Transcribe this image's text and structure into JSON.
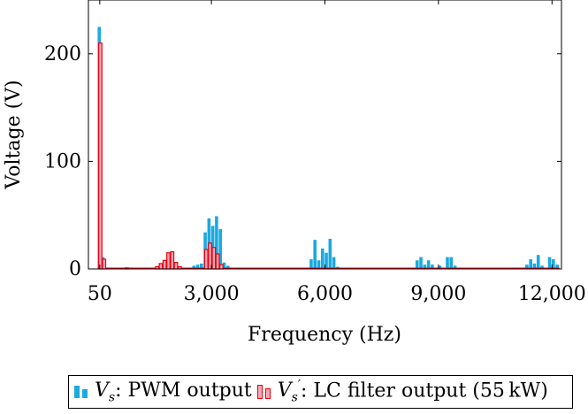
{
  "chart_data": {
    "type": "bar",
    "xlabel": "Frequency (Hz)",
    "ylabel": "Voltage (V)",
    "xlim": [
      -250,
      12250
    ],
    "ylim": [
      0,
      250
    ],
    "x_ticks": [
      50,
      3000,
      6000,
      9000,
      12000
    ],
    "x_tick_labels": [
      "50",
      "3,000",
      "6,000",
      "9,000",
      "12,000"
    ],
    "y_ticks": [
      0,
      100,
      200
    ],
    "y_tick_labels": [
      "0",
      "100",
      "200"
    ],
    "grid": false,
    "legend_position": "below",
    "series": [
      {
        "name": "V_s: PWM output",
        "legend_label": "Vs: PWM output",
        "color": "#1ba9e0",
        "x": [
          50,
          150,
          2550,
          2650,
          2750,
          2850,
          2950,
          3050,
          3150,
          3250,
          3350,
          3450,
          5650,
          5750,
          5850,
          5950,
          6050,
          6150,
          6250,
          6350,
          8450,
          8550,
          8650,
          8750,
          8850,
          9050,
          9250,
          9350,
          9450,
          11350,
          11450,
          11550,
          11650,
          11750,
          11950,
          12050,
          12150
        ],
        "values": [
          225,
          11,
          3,
          4,
          5,
          34,
          47,
          40,
          49,
          37,
          6,
          3,
          9,
          27,
          8,
          19,
          15,
          28,
          11,
          2,
          8,
          11,
          4,
          8,
          4,
          3,
          11,
          11,
          3,
          4,
          9,
          5,
          13,
          3,
          11,
          9,
          4
        ]
      },
      {
        "name": "V_s': LC filter output (55 kW)",
        "legend_label": "LC filter output (55 kW)",
        "color": "#e8000b",
        "fill": "#f4a9b8",
        "x": [
          50,
          150,
          750,
          1550,
          1650,
          1750,
          1850,
          1950,
          2050,
          2150,
          2850,
          2950,
          3050,
          3150,
          3250
        ],
        "values": [
          210,
          9,
          1,
          2,
          5,
          8,
          15,
          16,
          6,
          2,
          18,
          24,
          20,
          14,
          4
        ]
      }
    ]
  }
}
